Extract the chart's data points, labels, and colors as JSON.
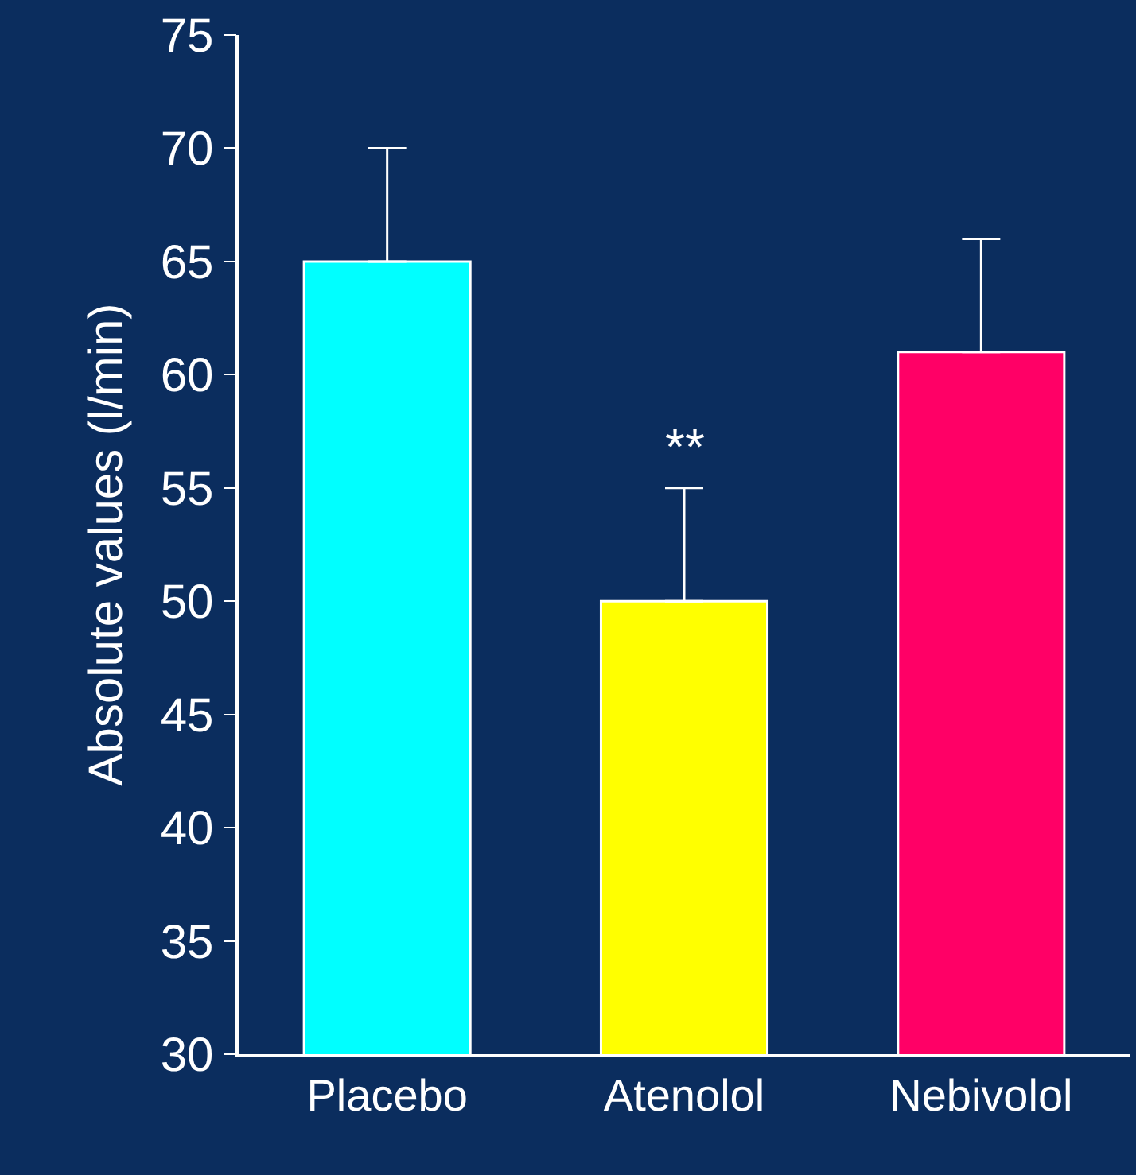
{
  "chart_data": {
    "type": "bar",
    "ylabel": "Absolute values (l/min)",
    "categories": [
      "Placebo",
      "Atenolol",
      "Nebivolol"
    ],
    "values": [
      65,
      50,
      61
    ],
    "colors": [
      "#00ffff",
      "#ffff00",
      "#ff0066"
    ],
    "errors": [
      [
        65,
        70
      ],
      [
        50,
        55
      ],
      [
        61,
        66
      ]
    ],
    "ylim": [
      30,
      75
    ],
    "yticks": [
      30,
      35,
      40,
      45,
      50,
      55,
      60,
      65,
      70,
      75
    ],
    "annotations": [
      "**"
    ],
    "grid": false,
    "legend": false
  }
}
